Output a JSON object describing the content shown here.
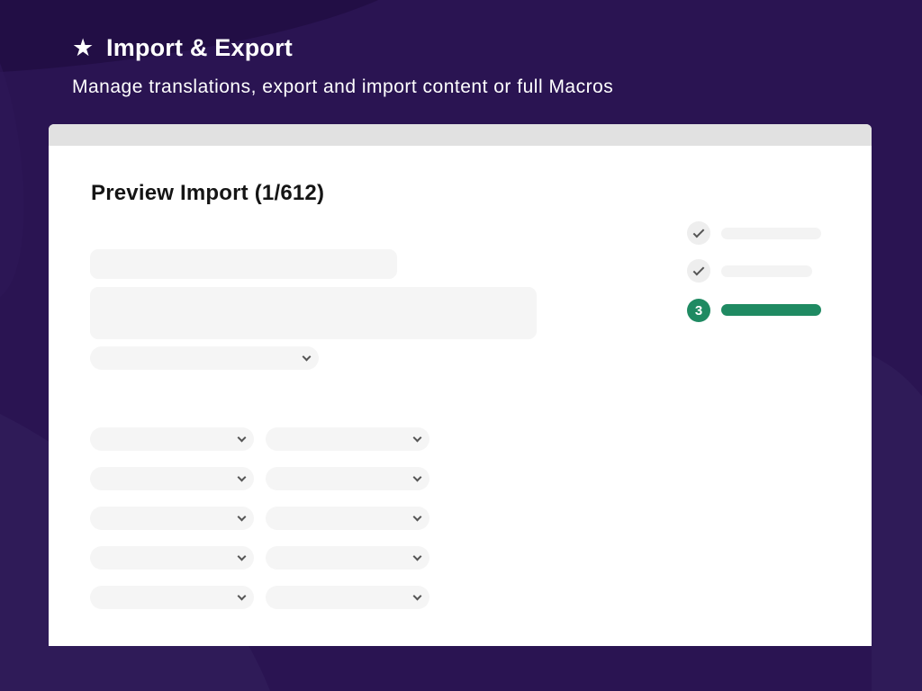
{
  "header": {
    "icon": "star-icon",
    "title": "Import & Export",
    "subtitle": "Manage translations, export and import content or full Macros"
  },
  "panel": {
    "title": "Preview Import (1/612)"
  },
  "steps": [
    {
      "state": "completed",
      "icon": "check-icon"
    },
    {
      "state": "completed",
      "icon": "check-icon"
    },
    {
      "state": "active",
      "number": "3"
    }
  ],
  "colors": {
    "background": "#2a1452",
    "accent": "#1f8a62",
    "window_bar": "#e1e1e1",
    "placeholder": "#f5f5f5"
  }
}
